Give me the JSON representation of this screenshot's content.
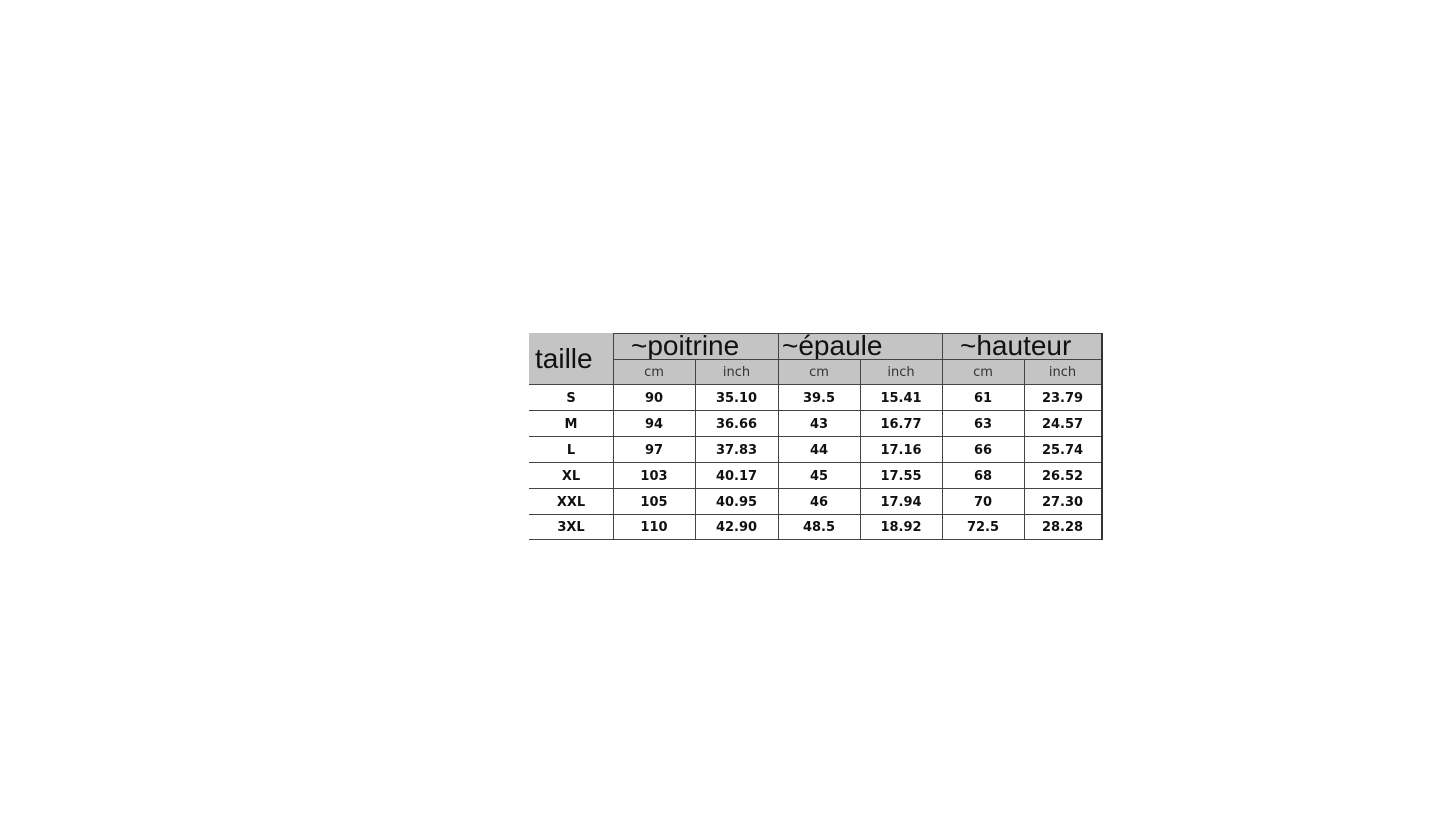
{
  "table": {
    "size_header": "taille",
    "groups": [
      "~poitrine",
      "~épaule",
      "~hauteur"
    ],
    "units": [
      "cm",
      "inch",
      "cm",
      "inch",
      "cm",
      "inch"
    ],
    "rows": [
      [
        "S",
        "90",
        "35.10",
        "39.5",
        "15.41",
        "61",
        "23.79"
      ],
      [
        "M",
        "94",
        "36.66",
        "43",
        "16.77",
        "63",
        "24.57"
      ],
      [
        "L",
        "97",
        "37.83",
        "44",
        "17.16",
        "66",
        "25.74"
      ],
      [
        "XL",
        "103",
        "40.17",
        "45",
        "17.55",
        "68",
        "26.52"
      ],
      [
        "XXL",
        "105",
        "40.95",
        "46",
        "17.94",
        "70",
        "27.30"
      ],
      [
        "3XL",
        "110",
        "42.90",
        "48.5",
        "18.92",
        "72.5",
        "28.28"
      ]
    ]
  }
}
